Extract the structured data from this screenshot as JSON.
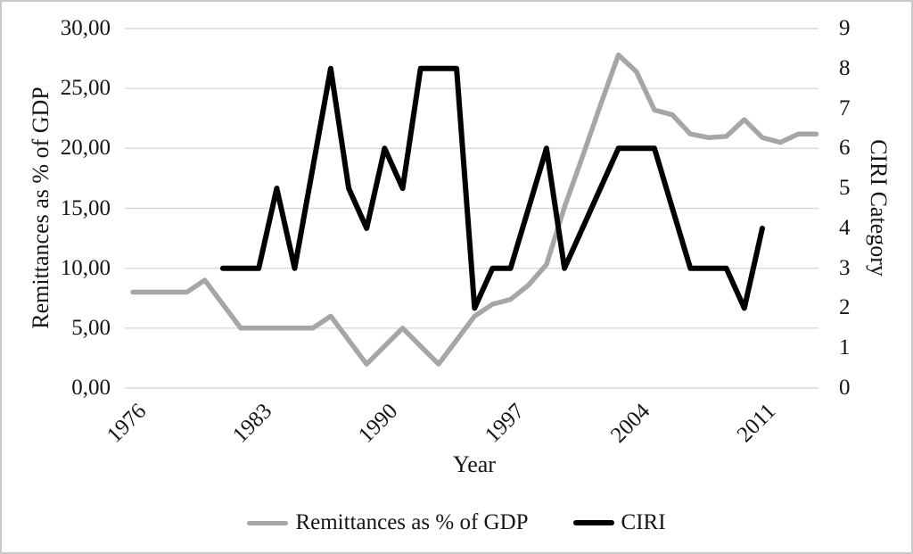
{
  "chart_data": {
    "type": "line",
    "title": "",
    "xlabel": "Year",
    "ylabel_left": "Remittances as % of GDP",
    "ylabel_right": "CIRI Category",
    "grid": true,
    "legend_position": "bottom-center",
    "x_min": 1976,
    "x_max": 2014,
    "x_ticks": [
      1976,
      1983,
      1990,
      1997,
      2004,
      2011
    ],
    "left_axis": {
      "min": 0,
      "max": 30,
      "tick_step": 5,
      "tick_labels": [
        "0,00",
        "5,00",
        "10,00",
        "15,00",
        "20,00",
        "25,00",
        "30,00"
      ]
    },
    "right_axis": {
      "min": 0,
      "max": 9,
      "tick_step": 1,
      "tick_labels": [
        "0",
        "1",
        "2",
        "3",
        "4",
        "5",
        "6",
        "7",
        "8",
        "9"
      ]
    },
    "colors": {
      "remittances_line": "#a6a6a6",
      "ciri_line": "#000000",
      "gridline": "#d9d9d9",
      "text": "#151515",
      "frame_border": "#c9c9c9"
    },
    "series": [
      {
        "name": "Remittances as % of GDP",
        "axis": "left",
        "color": "#a6a6a6",
        "x_start": 1976,
        "x": [
          1976,
          1977,
          1978,
          1979,
          1980,
          1981,
          1982,
          1983,
          1984,
          1985,
          1986,
          1987,
          1988,
          1989,
          1990,
          1991,
          1992,
          1993,
          1994,
          1995,
          1996,
          1997,
          1998,
          1999,
          2000,
          2001,
          2002,
          2003,
          2004,
          2005,
          2006,
          2007,
          2008,
          2009,
          2010,
          2011,
          2012,
          2013,
          2014
        ],
        "values": [
          8.0,
          8.0,
          8.0,
          8.0,
          9.0,
          7.0,
          5.0,
          5.0,
          5.0,
          5.0,
          5.0,
          6.0,
          4.0,
          2.0,
          3.5,
          5.0,
          3.5,
          2.0,
          4.0,
          6.0,
          7.0,
          7.4,
          8.6,
          10.3,
          15.1,
          19.3,
          23.6,
          27.8,
          26.4,
          23.2,
          22.8,
          21.2,
          20.9,
          21.0,
          22.4,
          20.9,
          20.5,
          21.2,
          21.2
        ]
      },
      {
        "name": "CIRI",
        "axis": "right",
        "color": "#000000",
        "x_start": 1981,
        "x": [
          1981,
          1982,
          1983,
          1984,
          1985,
          1986,
          1987,
          1988,
          1989,
          1990,
          1991,
          1992,
          1993,
          1994,
          1995,
          1996,
          1997,
          1998,
          1999,
          2000,
          2001,
          2002,
          2003,
          2004,
          2005,
          2006,
          2007,
          2008,
          2009,
          2010,
          2011
        ],
        "values": [
          3,
          3,
          3,
          5,
          3,
          5.5,
          8,
          5,
          4,
          6,
          5,
          8,
          8,
          8,
          2,
          3,
          3,
          4.5,
          6,
          3,
          4,
          5,
          6,
          6,
          6,
          4.5,
          3,
          3,
          3,
          2,
          4
        ]
      }
    ]
  },
  "legend": {
    "items": [
      {
        "label": "Remittances as % of GDP"
      },
      {
        "label": "CIRI"
      }
    ]
  }
}
